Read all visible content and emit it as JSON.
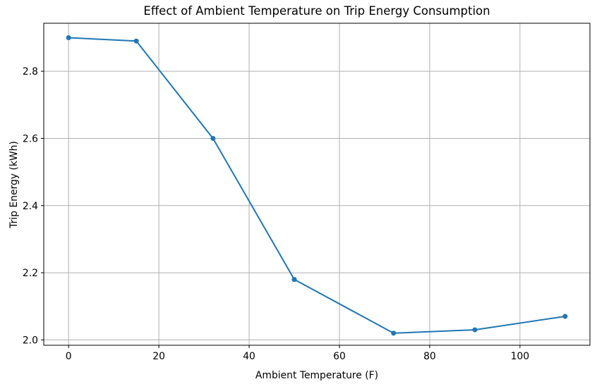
{
  "chart_data": {
    "type": "line",
    "title": "Effect of Ambient Temperature on Trip Energy Consumption",
    "xlabel": "Ambient Temperature (F)",
    "ylabel": "Trip Energy (kWh)",
    "x": [
      0,
      15,
      32,
      50,
      72,
      90,
      110
    ],
    "y": [
      2.9,
      2.89,
      2.6,
      2.18,
      2.02,
      2.03,
      2.07
    ],
    "xtick_values": [
      0,
      20,
      40,
      60,
      80,
      100
    ],
    "xtick_labels": [
      "0",
      "20",
      "40",
      "60",
      "80",
      "100"
    ],
    "ytick_values": [
      2.0,
      2.2,
      2.4,
      2.6,
      2.8
    ],
    "ytick_labels": [
      "2.0",
      "2.2",
      "2.4",
      "2.6",
      "2.8"
    ],
    "xlim": [
      -5.5,
      115.5
    ],
    "ylim": [
      1.984,
      2.943
    ],
    "grid": true,
    "legend": "none",
    "line_color": "#1f77b4",
    "marker_color": "#1f77b4",
    "grid_color": "#b0b0b0",
    "spine_color": "#000000",
    "background_color": "#ffffff"
  }
}
